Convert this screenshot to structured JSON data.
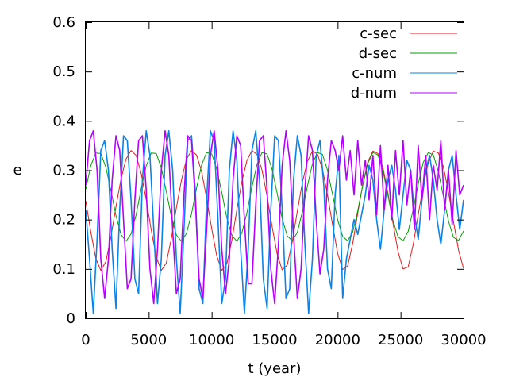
{
  "chart_data": {
    "type": "line",
    "title": "",
    "xlabel": "t (year)",
    "ylabel": "e",
    "xlim": [
      0,
      30000
    ],
    "ylim": [
      0,
      0.6
    ],
    "x_ticks": [
      0,
      5000,
      10000,
      15000,
      20000,
      25000,
      30000
    ],
    "x_tick_labels": [
      "0",
      "5000",
      "10000",
      "15000",
      "20000",
      "25000",
      "30000"
    ],
    "y_ticks": [
      0,
      0.1,
      0.2,
      0.3,
      0.4,
      0.5,
      0.6
    ],
    "y_tick_labels": [
      "0",
      "0.1",
      "0.2",
      "0.3",
      "0.4",
      "0.5",
      "0.6"
    ],
    "grid": false,
    "legend_position": "top-right",
    "series": [
      {
        "name": "c-sec",
        "color": "#e41a1c",
        "x": [
          0,
          400,
          800,
          1200,
          1600,
          2000,
          2400,
          2800,
          3200,
          3600,
          4000,
          4400,
          4800,
          5200,
          5600,
          6000,
          6400,
          6800,
          7200,
          7600,
          8000,
          8400,
          8800,
          9200,
          9600,
          10000,
          10400,
          10800,
          11200,
          11600,
          12000,
          12400,
          12800,
          13200,
          13600,
          14000,
          14400,
          14800,
          15200,
          15600,
          16000,
          16400,
          16800,
          17200,
          17600,
          18000,
          18400,
          18800,
          19200,
          19600,
          20000,
          20400,
          20800,
          21200,
          21600,
          22000,
          22400,
          22800,
          23200,
          23600,
          24000,
          24400,
          24800,
          25200,
          25600,
          26000,
          26400,
          26800,
          27200,
          27600,
          28000,
          28400,
          28800,
          29200,
          29600,
          30000
        ],
        "values": [
          0.238,
          0.176,
          0.121,
          0.097,
          0.115,
          0.165,
          0.226,
          0.282,
          0.323,
          0.34,
          0.33,
          0.294,
          0.24,
          0.179,
          0.124,
          0.097,
          0.112,
          0.162,
          0.224,
          0.28,
          0.322,
          0.34,
          0.331,
          0.297,
          0.243,
          0.182,
          0.127,
          0.097,
          0.11,
          0.158,
          0.22,
          0.277,
          0.32,
          0.34,
          0.332,
          0.3,
          0.247,
          0.186,
          0.13,
          0.098,
          0.108,
          0.155,
          0.217,
          0.275,
          0.318,
          0.339,
          0.333,
          0.302,
          0.25,
          0.189,
          0.132,
          0.099,
          0.106,
          0.152,
          0.213,
          0.272,
          0.317,
          0.339,
          0.334,
          0.305,
          0.253,
          0.193,
          0.135,
          0.1,
          0.104,
          0.149,
          0.21,
          0.269,
          0.315,
          0.339,
          0.335,
          0.307,
          0.256,
          0.196,
          0.138,
          0.101
        ]
      },
      {
        "name": "d-sec",
        "color": "#00a000",
        "x": [
          0,
          400,
          800,
          1200,
          1600,
          2000,
          2400,
          2800,
          3200,
          3600,
          4000,
          4400,
          4800,
          5200,
          5600,
          6000,
          6400,
          6800,
          7200,
          7600,
          8000,
          8400,
          8800,
          9200,
          9600,
          10000,
          10400,
          10800,
          11200,
          11600,
          12000,
          12400,
          12800,
          13200,
          13600,
          14000,
          14400,
          14800,
          15200,
          15600,
          16000,
          16400,
          16800,
          17200,
          17600,
          18000,
          18400,
          18800,
          19200,
          19600,
          20000,
          20400,
          20800,
          21200,
          21600,
          22000,
          22400,
          22800,
          23200,
          23600,
          24000,
          24400,
          24800,
          25200,
          25600,
          26000,
          26400,
          26800,
          27200,
          27600,
          28000,
          28400,
          28800,
          29200,
          29600,
          30000
        ],
        "values": [
          0.261,
          0.309,
          0.335,
          0.334,
          0.306,
          0.259,
          0.208,
          0.17,
          0.156,
          0.171,
          0.21,
          0.262,
          0.309,
          0.335,
          0.334,
          0.305,
          0.257,
          0.206,
          0.169,
          0.156,
          0.172,
          0.212,
          0.264,
          0.311,
          0.336,
          0.333,
          0.303,
          0.255,
          0.204,
          0.168,
          0.156,
          0.173,
          0.214,
          0.266,
          0.312,
          0.336,
          0.333,
          0.302,
          0.253,
          0.202,
          0.167,
          0.157,
          0.174,
          0.216,
          0.268,
          0.313,
          0.336,
          0.332,
          0.3,
          0.251,
          0.2,
          0.166,
          0.157,
          0.175,
          0.218,
          0.27,
          0.314,
          0.336,
          0.331,
          0.298,
          0.249,
          0.198,
          0.165,
          0.157,
          0.176,
          0.22,
          0.272,
          0.316,
          0.336,
          0.331,
          0.297,
          0.247,
          0.197,
          0.164,
          0.158,
          0.177
        ]
      },
      {
        "name": "c-num",
        "color": "#0a84e8",
        "x": [
          0,
          300,
          600,
          900,
          1200,
          1500,
          1800,
          2100,
          2400,
          2700,
          3000,
          3300,
          3600,
          3900,
          4200,
          4500,
          4800,
          5100,
          5400,
          5700,
          6000,
          6300,
          6600,
          6900,
          7200,
          7500,
          7800,
          8100,
          8400,
          8700,
          9000,
          9300,
          9600,
          9900,
          10200,
          10500,
          10800,
          11100,
          11400,
          11700,
          12000,
          12300,
          12600,
          12900,
          13200,
          13500,
          13800,
          14100,
          14400,
          14700,
          15000,
          15300,
          15600,
          15900,
          16200,
          16500,
          16800,
          17100,
          17400,
          17700,
          18000,
          18300,
          18600,
          18900,
          19200,
          19500,
          19800,
          20100,
          20400,
          20700,
          21000,
          21300,
          21600,
          21900,
          22200,
          22500,
          22800,
          23100,
          23400,
          23700,
          24000,
          24300,
          24600,
          24900,
          25200,
          25500,
          25800,
          26100,
          26400,
          26700,
          27000,
          27300,
          27600,
          27900,
          28200,
          28500,
          28800,
          29100,
          29400,
          29700,
          30000
        ],
        "values": [
          0.22,
          0.12,
          0.01,
          0.16,
          0.34,
          0.36,
          0.3,
          0.14,
          0.02,
          0.22,
          0.37,
          0.36,
          0.24,
          0.08,
          0.05,
          0.28,
          0.38,
          0.33,
          0.18,
          0.03,
          0.12,
          0.33,
          0.38,
          0.3,
          0.12,
          0.01,
          0.18,
          0.36,
          0.37,
          0.26,
          0.06,
          0.03,
          0.24,
          0.38,
          0.36,
          0.2,
          0.03,
          0.08,
          0.3,
          0.38,
          0.32,
          0.14,
          0.01,
          0.14,
          0.34,
          0.38,
          0.28,
          0.08,
          0.02,
          0.22,
          0.37,
          0.36,
          0.22,
          0.04,
          0.06,
          0.28,
          0.37,
          0.33,
          0.15,
          0.01,
          0.12,
          0.33,
          0.36,
          0.27,
          0.1,
          0.06,
          0.25,
          0.33,
          0.04,
          0.12,
          0.16,
          0.2,
          0.17,
          0.21,
          0.25,
          0.31,
          0.28,
          0.2,
          0.14,
          0.22,
          0.28,
          0.31,
          0.26,
          0.18,
          0.25,
          0.32,
          0.3,
          0.21,
          0.16,
          0.24,
          0.3,
          0.33,
          0.28,
          0.2,
          0.15,
          0.22,
          0.3,
          0.33,
          0.25,
          0.18,
          0.24
        ]
      },
      {
        "name": "d-num",
        "color": "#b400ff",
        "x": [
          0,
          300,
          600,
          900,
          1200,
          1500,
          1800,
          2100,
          2400,
          2700,
          3000,
          3300,
          3600,
          3900,
          4200,
          4500,
          4800,
          5100,
          5400,
          5700,
          6000,
          6300,
          6600,
          6900,
          7200,
          7500,
          7800,
          8100,
          8400,
          8700,
          9000,
          9300,
          9600,
          9900,
          10200,
          10500,
          10800,
          11100,
          11400,
          11700,
          12000,
          12300,
          12600,
          12900,
          13200,
          13500,
          13800,
          14100,
          14400,
          14700,
          15000,
          15300,
          15600,
          15900,
          16200,
          16500,
          16800,
          17100,
          17400,
          17700,
          18000,
          18300,
          18600,
          18900,
          19200,
          19500,
          19800,
          20100,
          20400,
          20700,
          21000,
          21300,
          21600,
          21900,
          22200,
          22500,
          22800,
          23100,
          23400,
          23700,
          24000,
          24300,
          24600,
          24900,
          25200,
          25500,
          25800,
          26100,
          26400,
          26700,
          27000,
          27300,
          27600,
          27900,
          28200,
          28500,
          28800,
          29100,
          29400,
          29700,
          30000
        ],
        "values": [
          0.27,
          0.36,
          0.38,
          0.3,
          0.12,
          0.04,
          0.12,
          0.28,
          0.37,
          0.34,
          0.2,
          0.06,
          0.08,
          0.24,
          0.36,
          0.37,
          0.26,
          0.1,
          0.03,
          0.14,
          0.3,
          0.38,
          0.33,
          0.18,
          0.05,
          0.08,
          0.25,
          0.37,
          0.36,
          0.24,
          0.08,
          0.04,
          0.18,
          0.33,
          0.38,
          0.3,
          0.14,
          0.05,
          0.12,
          0.28,
          0.37,
          0.35,
          0.2,
          0.07,
          0.07,
          0.23,
          0.36,
          0.37,
          0.26,
          0.1,
          0.03,
          0.15,
          0.31,
          0.38,
          0.32,
          0.17,
          0.04,
          0.1,
          0.26,
          0.37,
          0.34,
          0.2,
          0.09,
          0.14,
          0.28,
          0.36,
          0.34,
          0.3,
          0.37,
          0.28,
          0.34,
          0.25,
          0.36,
          0.27,
          0.32,
          0.24,
          0.33,
          0.21,
          0.35,
          0.22,
          0.31,
          0.2,
          0.34,
          0.25,
          0.36,
          0.23,
          0.3,
          0.18,
          0.35,
          0.24,
          0.33,
          0.2,
          0.31,
          0.26,
          0.36,
          0.22,
          0.3,
          0.19,
          0.34,
          0.25,
          0.27
        ]
      }
    ]
  }
}
